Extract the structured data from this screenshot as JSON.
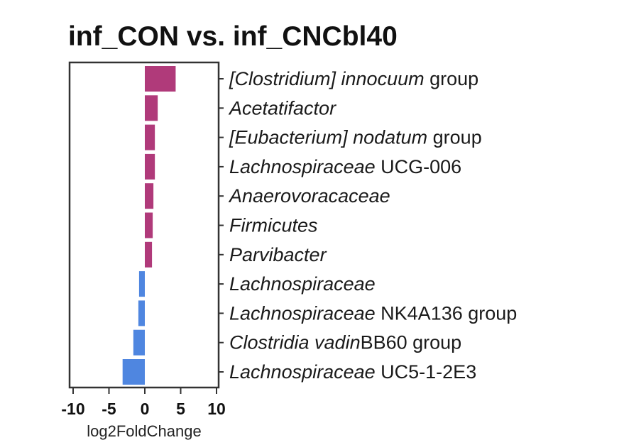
{
  "chart_data": {
    "type": "bar",
    "orientation": "horizontal",
    "title": "inf_CON vs. inf_CNCbl40",
    "xlabel": "log2FoldChange",
    "ylabel": "",
    "xlim": [
      -10,
      10
    ],
    "xticks": [
      -10,
      -5,
      0,
      5,
      10
    ],
    "grid": false,
    "legend": "none",
    "colors": {
      "positive": "#B03A7A",
      "negative": "#4F86E0"
    },
    "categories": [
      {
        "label": "[Clostridium] innocuum group",
        "parts": [
          {
            "text": "[Clostridium] innocuum",
            "italic": true
          },
          {
            "text": " group",
            "italic": false
          }
        ]
      },
      {
        "label": "Acetatifactor",
        "parts": [
          {
            "text": "Acetatifactor",
            "italic": true
          }
        ]
      },
      {
        "label": "[Eubacterium] nodatum group",
        "parts": [
          {
            "text": "[Eubacterium] nodatum",
            "italic": true
          },
          {
            "text": " group",
            "italic": false
          }
        ]
      },
      {
        "label": "Lachnospiraceae UCG-006",
        "parts": [
          {
            "text": "Lachnospiraceae",
            "italic": true
          },
          {
            "text": " UCG-006",
            "italic": false
          }
        ]
      },
      {
        "label": "Anaerovoracaceae",
        "parts": [
          {
            "text": "Anaerovoracaceae",
            "italic": true
          }
        ]
      },
      {
        "label": "Firmicutes",
        "parts": [
          {
            "text": "Firmicutes",
            "italic": true
          }
        ]
      },
      {
        "label": "Parvibacter",
        "parts": [
          {
            "text": "Parvibacter",
            "italic": true
          }
        ]
      },
      {
        "label": "Lachnospiraceae",
        "parts": [
          {
            "text": "Lachnospiraceae",
            "italic": true
          }
        ]
      },
      {
        "label": "Lachnospiraceae NK4A136 group",
        "parts": [
          {
            "text": "Lachnospiraceae",
            "italic": true
          },
          {
            "text": " NK4A136 group",
            "italic": false
          }
        ]
      },
      {
        "label": "Clostridia vadinBB60 group",
        "parts": [
          {
            "text": "Clostridia vadin",
            "italic": true
          },
          {
            "text": "BB60 group",
            "italic": false
          }
        ]
      },
      {
        "label": "Lachnospiraceae UC5-1-2E3",
        "parts": [
          {
            "text": "Lachnospiraceae",
            "italic": true
          },
          {
            "text": " UC5-1-2E3",
            "italic": false
          }
        ]
      }
    ],
    "values": [
      4.3,
      1.8,
      1.4,
      1.4,
      1.2,
      1.1,
      1.0,
      -0.8,
      -0.9,
      -1.6,
      -3.1
    ]
  }
}
